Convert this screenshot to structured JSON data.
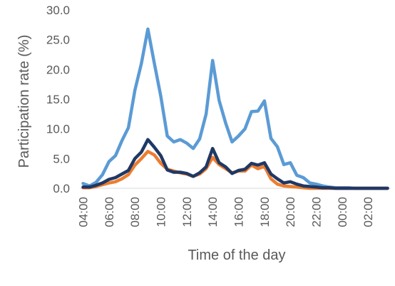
{
  "chart_data": {
    "type": "line",
    "title": "",
    "xlabel": "Time of the day",
    "ylabel": "Participation rate (%)",
    "ylim": [
      0,
      30
    ],
    "yticks": [
      "0.0",
      "5.0",
      "10.0",
      "15.0",
      "20.0",
      "25.0",
      "30.0"
    ],
    "grid": false,
    "legend": "none",
    "xtick_labels": [
      "04:00",
      "06:00",
      "08:00",
      "10:00",
      "12:00",
      "14:00",
      "16:00",
      "18:00",
      "20:00",
      "22:00",
      "00:00",
      "02:00"
    ],
    "x": [
      "04:00",
      "04:30",
      "05:00",
      "05:30",
      "06:00",
      "06:30",
      "07:00",
      "07:30",
      "08:00",
      "08:30",
      "09:00",
      "09:30",
      "10:00",
      "10:30",
      "11:00",
      "11:30",
      "12:00",
      "12:30",
      "13:00",
      "13:30",
      "14:00",
      "14:30",
      "15:00",
      "15:30",
      "16:00",
      "16:30",
      "17:00",
      "17:30",
      "18:00",
      "18:30",
      "19:00",
      "19:30",
      "20:00",
      "20:30",
      "21:00",
      "21:30",
      "22:00",
      "22:30",
      "23:00",
      "23:30",
      "00:00",
      "00:30",
      "01:00",
      "01:30",
      "02:00",
      "02:30",
      "03:00",
      "03:30"
    ],
    "series": [
      {
        "color": "#5B9BD5",
        "values": [
          0.8,
          0.4,
          1.0,
          2.3,
          4.5,
          5.5,
          8.0,
          10.2,
          16.5,
          21.0,
          26.8,
          21.0,
          15.5,
          8.8,
          7.8,
          8.2,
          7.6,
          6.7,
          8.3,
          12.5,
          21.5,
          14.8,
          11.0,
          7.8,
          8.8,
          10.0,
          12.9,
          13.0,
          14.7,
          8.4,
          7.0,
          4.0,
          4.3,
          2.2,
          1.8,
          0.9,
          0.7,
          0.4,
          0.2,
          0.1,
          0.1,
          0.1,
          0.0,
          0.0,
          0.0,
          0.0,
          0.0,
          0.0
        ]
      },
      {
        "color": "#ED7D31",
        "values": [
          0.1,
          0.1,
          0.3,
          0.6,
          0.9,
          1.1,
          1.6,
          2.3,
          3.9,
          5.0,
          6.2,
          5.6,
          4.2,
          3.2,
          2.9,
          2.6,
          2.4,
          2.0,
          2.4,
          3.3,
          5.2,
          4.0,
          3.3,
          2.6,
          2.9,
          2.9,
          3.9,
          3.3,
          3.7,
          1.6,
          0.7,
          0.4,
          0.3,
          0.2,
          0.1,
          0.0,
          0.0,
          0.0,
          0.0,
          0.0,
          0.0,
          0.0,
          0.0,
          0.0,
          0.0,
          0.0,
          0.0,
          0.0
        ]
      },
      {
        "color": "#203864",
        "values": [
          0.2,
          0.2,
          0.5,
          0.9,
          1.5,
          1.8,
          2.4,
          3.0,
          5.0,
          6.1,
          8.2,
          6.9,
          5.5,
          3.1,
          2.7,
          2.7,
          2.5,
          2.0,
          2.6,
          3.6,
          6.7,
          4.3,
          3.6,
          2.5,
          3.0,
          3.2,
          4.2,
          3.9,
          4.3,
          2.4,
          1.6,
          0.9,
          1.1,
          0.7,
          0.4,
          0.3,
          0.2,
          0.1,
          0.1,
          0.0,
          0.0,
          0.0,
          0.0,
          0.0,
          0.0,
          0.0,
          0.0,
          0.0
        ]
      }
    ]
  }
}
